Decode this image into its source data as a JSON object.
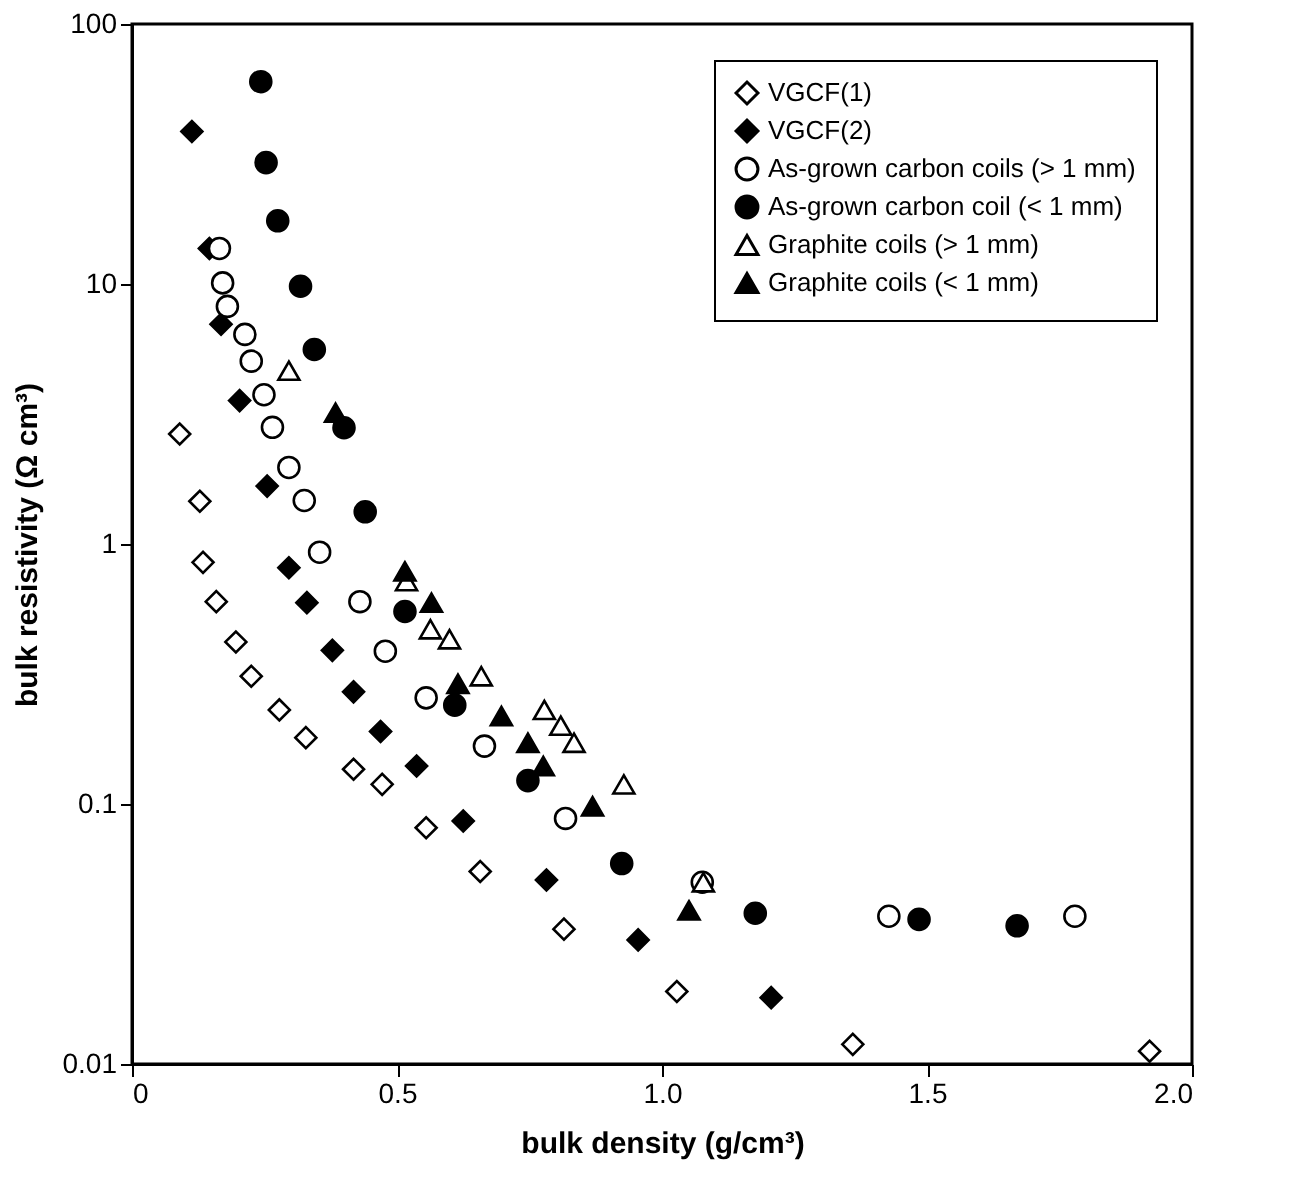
{
  "chart_data": {
    "type": "scatter",
    "xlabel": "bulk density (g/cm³)",
    "ylabel": "bulk resistivity (Ω cm³)",
    "xlim": [
      0,
      2.0
    ],
    "xticks": [
      0,
      {
        "value": 0.5,
        "label": "0.5"
      },
      {
        "value": 1.0,
        "label": "1.0"
      },
      {
        "value": 1.5,
        "label": "1.5"
      },
      {
        "value": 2.0,
        "label": "2.0"
      }
    ],
    "ylim": [
      0.01,
      100
    ],
    "yticks": [
      0.01,
      0.1,
      1,
      10,
      100
    ],
    "log": true,
    "grid": false,
    "legend": "top right",
    "series": [
      {
        "name": "VGCF(1)",
        "marker": "diamond",
        "color": "#ffffff",
        "x": [
          0.09,
          0.128,
          0.134,
          0.159,
          0.196,
          0.225,
          0.278,
          0.328,
          0.418,
          0.472,
          0.555,
          0.657,
          0.815,
          1.028,
          1.36,
          1.92
        ],
        "values": [
          2.65,
          1.46,
          0.85,
          0.6,
          0.42,
          0.31,
          0.23,
          0.18,
          0.136,
          0.119,
          0.081,
          0.055,
          0.033,
          0.019,
          0.0119,
          0.0112
        ]
      },
      {
        "name": "VGCF(2)",
        "marker": "diamond",
        "color": "#000000",
        "x": [
          0.113,
          0.146,
          0.168,
          0.203,
          0.255,
          0.296,
          0.33,
          0.378,
          0.418,
          0.469,
          0.537,
          0.625,
          0.782,
          0.955,
          1.206
        ],
        "values": [
          38.6,
          13.7,
          7.0,
          3.56,
          1.67,
          0.81,
          0.595,
          0.39,
          0.27,
          0.19,
          0.14,
          0.086,
          0.051,
          0.03,
          0.018
        ]
      },
      {
        "name": "As-grown carbon coils (> 1 mm)",
        "marker": "circle",
        "color": "#ffffff",
        "x": [
          0.165,
          0.171,
          0.18,
          0.213,
          0.225,
          0.249,
          0.265,
          0.296,
          0.325,
          0.354,
          0.43,
          0.478,
          0.555,
          0.665,
          0.818,
          1.076,
          1.428,
          1.779
        ],
        "values": [
          13.7,
          10.1,
          8.2,
          6.4,
          5.05,
          3.75,
          2.81,
          1.97,
          1.47,
          0.93,
          0.6,
          0.387,
          0.256,
          0.167,
          0.088,
          0.05,
          0.037,
          0.037
        ]
      },
      {
        "name": "As-grown carbon coil (< 1 mm)",
        "marker": "circle",
        "color": "#000000",
        "x": [
          0.243,
          0.253,
          0.275,
          0.318,
          0.344,
          0.4,
          0.44,
          0.515,
          0.609,
          0.747,
          0.924,
          1.176,
          1.485,
          1.67
        ],
        "values": [
          60,
          29.3,
          17.5,
          9.8,
          5.6,
          2.8,
          1.33,
          0.55,
          0.24,
          0.123,
          0.059,
          0.038,
          0.036,
          0.034
        ]
      },
      {
        "name": "Graphite coils (> 1 mm)",
        "marker": "triangle",
        "color": "#ffffff",
        "x": [
          0.296,
          0.518,
          0.563,
          0.599,
          0.659,
          0.778,
          0.809,
          0.834,
          0.928,
          1.078
        ],
        "values": [
          4.64,
          0.72,
          0.47,
          0.43,
          0.31,
          0.23,
          0.2,
          0.172,
          0.119,
          0.05
        ]
      },
      {
        "name": "Graphite coils (< 1 mm)",
        "marker": "triangle",
        "color": "#000000",
        "x": [
          0.384,
          0.515,
          0.565,
          0.615,
          0.697,
          0.747,
          0.776,
          0.869,
          1.051
        ],
        "values": [
          3.2,
          0.785,
          0.595,
          0.29,
          0.218,
          0.172,
          0.14,
          0.098,
          0.039
        ]
      }
    ]
  }
}
